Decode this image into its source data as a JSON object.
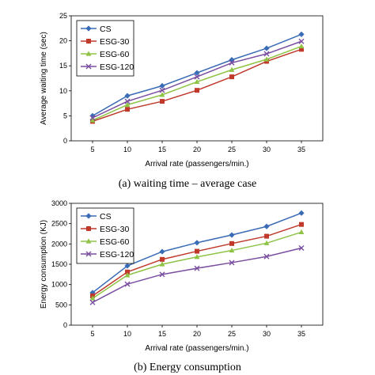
{
  "chart_data": [
    {
      "type": "line",
      "caption": "(a) waiting time – average case",
      "xlabel": "Arrival rate (passengers/min.)",
      "ylabel": "Average waiting time (sec)",
      "x": [
        5,
        10,
        15,
        20,
        25,
        30,
        35
      ],
      "xticks": [
        "5",
        "10",
        "15",
        "20",
        "25",
        "30",
        "35"
      ],
      "ylim": [
        0,
        25
      ],
      "yticks": [
        0,
        5,
        10,
        15,
        20,
        25
      ],
      "grid": false,
      "legend": "top-left",
      "series": [
        {
          "name": "CS",
          "color": "#3a6bb5",
          "marker": "diamond",
          "values": [
            5.0,
            9.0,
            11.0,
            13.6,
            16.2,
            18.5,
            21.3
          ]
        },
        {
          "name": "ESG-30",
          "color": "#c0392b",
          "marker": "square",
          "values": [
            3.9,
            6.3,
            7.9,
            10.1,
            12.8,
            15.9,
            18.3
          ]
        },
        {
          "name": "ESG-60",
          "color": "#8fc346",
          "marker": "triangle",
          "values": [
            4.1,
            7.2,
            9.2,
            11.8,
            14.2,
            16.3,
            18.9
          ]
        },
        {
          "name": "ESG-120",
          "color": "#7a4fa0",
          "marker": "x",
          "values": [
            4.6,
            7.9,
            10.1,
            12.8,
            15.6,
            17.4,
            19.9
          ]
        }
      ]
    },
    {
      "type": "line",
      "caption": "(b) Energy consumption",
      "xlabel": "Arrival rate (passengers/min.)",
      "ylabel": "Energy consumption (KJ)",
      "x": [
        5,
        10,
        15,
        20,
        25,
        30,
        35
      ],
      "xticks": [
        "5",
        "10",
        "15",
        "20",
        "25",
        "30",
        "35"
      ],
      "ylim": [
        0,
        3000
      ],
      "yticks": [
        0,
        500,
        1000,
        1500,
        2000,
        2500,
        3000
      ],
      "grid": false,
      "legend": "top-left",
      "series": [
        {
          "name": "CS",
          "color": "#3a6bb5",
          "marker": "diamond",
          "values": [
            800,
            1460,
            1810,
            2030,
            2220,
            2430,
            2760
          ]
        },
        {
          "name": "ESG-30",
          "color": "#c0392b",
          "marker": "square",
          "values": [
            720,
            1310,
            1620,
            1820,
            2010,
            2190,
            2480
          ]
        },
        {
          "name": "ESG-60",
          "color": "#8fc346",
          "marker": "triangle",
          "values": [
            660,
            1230,
            1500,
            1680,
            1840,
            2020,
            2290
          ]
        },
        {
          "name": "ESG-120",
          "color": "#7a4fa0",
          "marker": "x",
          "values": [
            560,
            1010,
            1250,
            1400,
            1540,
            1690,
            1900
          ]
        }
      ]
    }
  ]
}
